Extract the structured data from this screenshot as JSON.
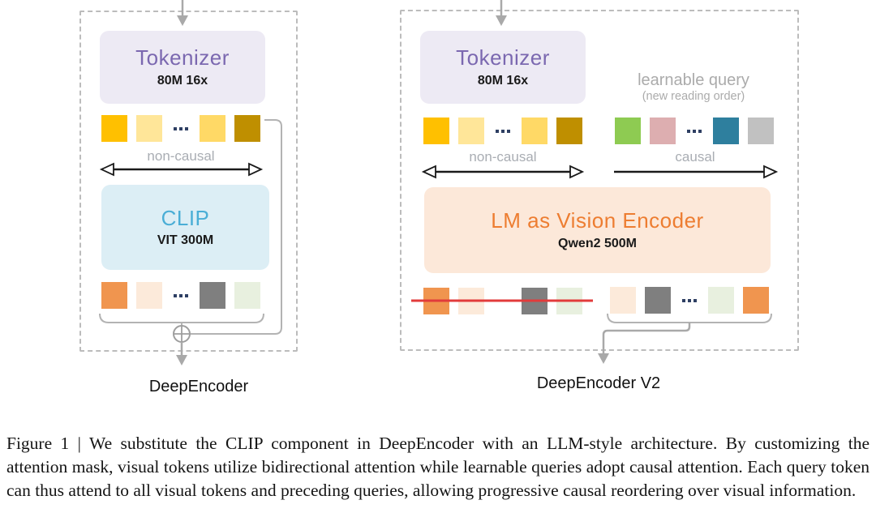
{
  "colors": {
    "tokenizer_bg": "#EDEAF4",
    "tokenizer_title": "#7B68B0",
    "clip_bg": "#DCEEF5",
    "clip_title": "#4AAED6",
    "lm_bg": "#FCE8D9",
    "lm_title": "#ED7D31",
    "strike_red": "#E23B3B"
  },
  "left_diagram": {
    "name_label": "DeepEncoder",
    "tokenizer": {
      "title": "Tokenizer",
      "subtitle": "80M 16x"
    },
    "visual_tokens": [
      "#FFC000",
      "#FFE699",
      "dots",
      "#FFD966",
      "#BF8F00"
    ],
    "visual_attention_label": "non-causal",
    "encoder": {
      "title": "CLIP",
      "subtitle": "VIT 300M"
    },
    "output_tokens": [
      "#F0954F",
      "#FCEADA",
      "dots",
      "#7F7F7F",
      "#E8F0DF"
    ]
  },
  "right_diagram": {
    "name_label": "DeepEncoder V2",
    "tokenizer": {
      "title": "Tokenizer",
      "subtitle": "80M 16x"
    },
    "learnable_query_label": "learnable query",
    "learnable_query_sublabel": "(new reading order)",
    "visual_tokens": [
      "#FFC000",
      "#FFE699",
      "dots",
      "#FFD966",
      "#BF8F00"
    ],
    "query_tokens": [
      "#8ECB52",
      "#DDAEB0",
      "dots",
      "#2E7F9E",
      "#C1C1C1"
    ],
    "visual_attention_label": "non-causal",
    "query_attention_label": "causal",
    "encoder": {
      "title": "LM as Vision Encoder",
      "subtitle": "Qwen2 500M"
    },
    "dropped_output_tokens": [
      "#F0954F",
      "#FCEADA",
      "gap",
      "#7F7F7F",
      "#E8F0DF"
    ],
    "kept_output_tokens": [
      "#FCEADA",
      "#7F7F7F",
      "dots",
      "#E8F0DF",
      "#F0954F"
    ]
  },
  "caption": "Figure 1 | We substitute the CLIP component in DeepEncoder with an LLM-style architecture. By customizing the attention mask, visual tokens utilize bidirectional attention while learnable queries adopt causal attention. Each query token can thus attend to all visual tokens and preceding queries, allowing progressive causal reordering over visual information."
}
